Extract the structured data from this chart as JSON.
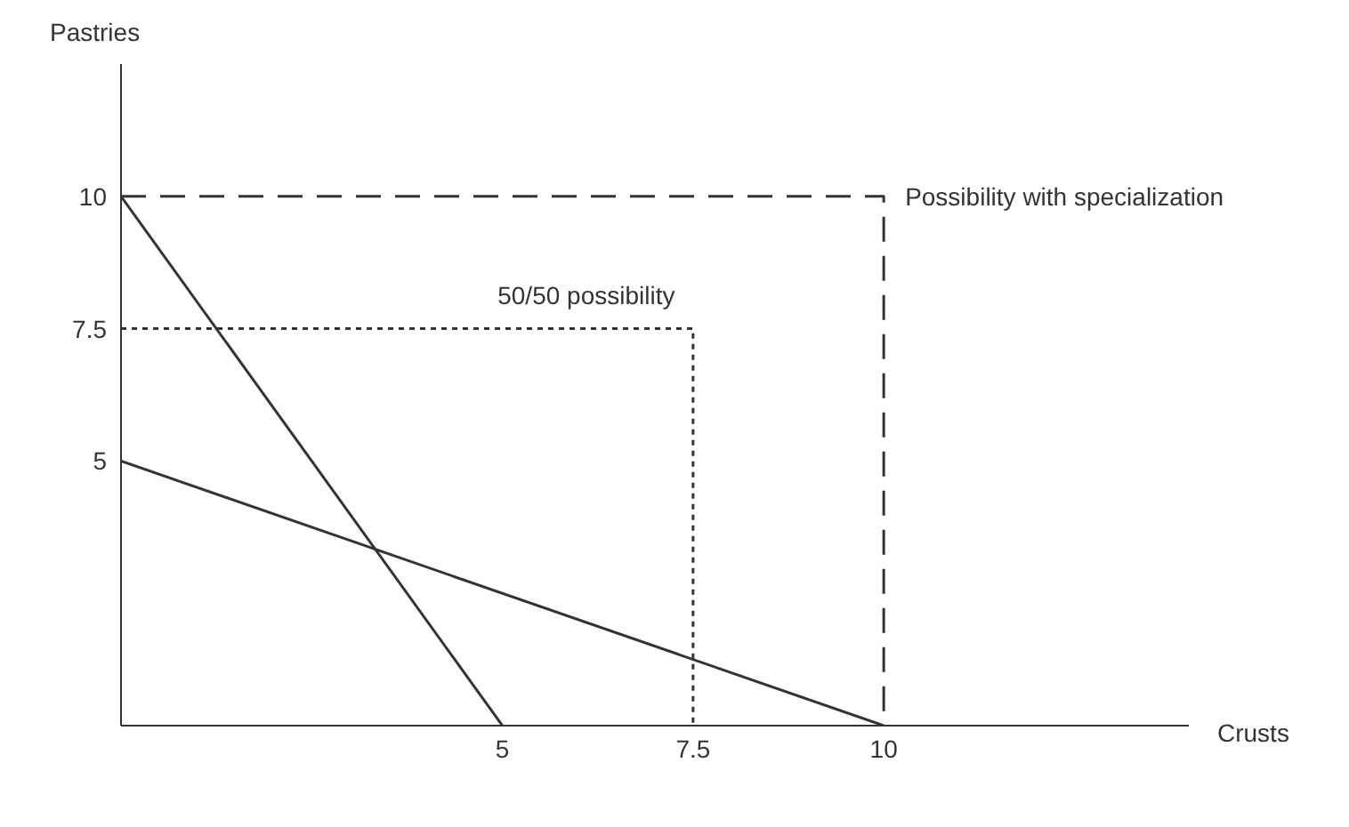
{
  "chart_data": {
    "type": "line",
    "xlabel": "Crusts",
    "ylabel": "Pastries",
    "xlim": [
      0,
      14
    ],
    "ylim": [
      0,
      12.5
    ],
    "xticks": [
      5,
      7.5,
      10
    ],
    "yticks": [
      5,
      7.5,
      10
    ],
    "grid": false,
    "marker": "none",
    "series": [
      {
        "color": "#333333",
        "x": [
          0,
          5
        ],
        "values": [
          10,
          0
        ],
        "line_style": "solid"
      },
      {
        "color": "#333333",
        "x": [
          0,
          10
        ],
        "values": [
          5,
          0
        ],
        "line_style": "solid"
      },
      {
        "color": "#333333",
        "x": [
          0,
          10,
          10
        ],
        "values": [
          10,
          10,
          0
        ],
        "line_style": "dashed"
      },
      {
        "color": "#333333",
        "x": [
          0,
          7.5,
          7.5
        ],
        "values": [
          7.5,
          7.5,
          0
        ],
        "line_style": "dotted"
      }
    ],
    "annotations": [
      {
        "text": "Possibility with specialization",
        "x": 10,
        "y": 10
      },
      {
        "text": "50/50 possibility",
        "x": 7.5,
        "y": 7.5
      }
    ]
  }
}
